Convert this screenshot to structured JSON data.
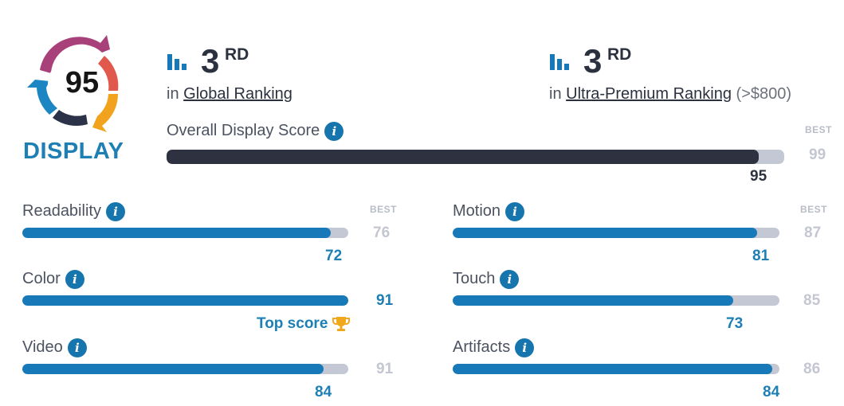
{
  "badge": {
    "score": "95",
    "label": "DISPLAY"
  },
  "global_rank": {
    "rank": "3",
    "suffix": "RD",
    "prefix": "in",
    "link": "Global Ranking",
    "extra": ""
  },
  "premium_rank": {
    "rank": "3",
    "suffix": "RD",
    "prefix": "in",
    "link": "Ultra-Premium Ranking",
    "extra": "(>$800)"
  },
  "overall": {
    "label": "Overall Display Score",
    "best_label": "BEST",
    "best": "99",
    "score": "95",
    "fraction": 0.959
  },
  "metrics": {
    "readability": {
      "label": "Readability",
      "best_label": "BEST",
      "best": "76",
      "score": "72",
      "fraction": 0.947
    },
    "color": {
      "label": "Color",
      "best": "91",
      "score": "",
      "fraction": 1.0,
      "top_label": "Top score"
    },
    "video": {
      "label": "Video",
      "best": "91",
      "score": "84",
      "fraction": 0.923
    },
    "motion": {
      "label": "Motion",
      "best_label": "BEST",
      "best": "87",
      "score": "81",
      "fraction": 0.931
    },
    "touch": {
      "label": "Touch",
      "best": "85",
      "score": "73",
      "fraction": 0.859
    },
    "artifacts": {
      "label": "Artifacts",
      "best": "86",
      "score": "84",
      "fraction": 0.977
    }
  },
  "colors": {
    "accent": "#1779b7",
    "overall_fill": "#2e3240",
    "track": "#c4c8d4",
    "trophy": "#f0a81c"
  },
  "icons": {
    "rank": "bar-chart-icon",
    "info": "info-icon",
    "trophy": "trophy-icon"
  }
}
